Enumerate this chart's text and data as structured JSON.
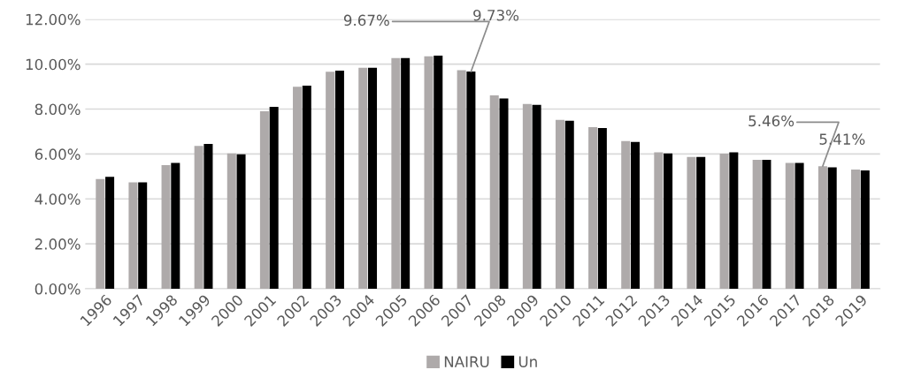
{
  "chart_data": {
    "type": "bar",
    "categories": [
      "1996",
      "1997",
      "1998",
      "1999",
      "2000",
      "2001",
      "2002",
      "2003",
      "2004",
      "2005",
      "2006",
      "2007",
      "2008",
      "2009",
      "2010",
      "2011",
      "2012",
      "2013",
      "2014",
      "2015",
      "2016",
      "2017",
      "2018",
      "2019"
    ],
    "series": [
      {
        "name": "NAIRU",
        "color": "#aeaaaa",
        "values": [
          4.89,
          4.74,
          5.5,
          6.36,
          6.03,
          7.9,
          8.99,
          9.66,
          9.84,
          10.27,
          10.35,
          9.73,
          8.61,
          8.23,
          7.52,
          7.2,
          6.58,
          6.07,
          5.87,
          6.02,
          5.74,
          5.6,
          5.46,
          5.31
        ]
      },
      {
        "name": "Un",
        "color": "#000000",
        "values": [
          4.98,
          4.74,
          5.6,
          6.45,
          5.99,
          8.1,
          9.04,
          9.71,
          9.84,
          10.27,
          10.38,
          9.67,
          8.47,
          8.19,
          7.48,
          7.16,
          6.54,
          6.03,
          5.87,
          6.07,
          5.74,
          5.6,
          5.41,
          5.27
        ]
      }
    ],
    "ylim": [
      0,
      12
    ],
    "yticks": [
      {
        "value": 0,
        "label": "0.00%"
      },
      {
        "value": 2,
        "label": "2.00%"
      },
      {
        "value": 4,
        "label": "4.00%"
      },
      {
        "value": 6,
        "label": "6.00%"
      },
      {
        "value": 8,
        "label": "8.00%"
      },
      {
        "value": 10,
        "label": "10.00%"
      },
      {
        "value": 12,
        "label": "12.00%"
      }
    ],
    "annotations": [
      {
        "text": "9.67%",
        "x": "2007",
        "y": 9.67
      },
      {
        "text": "9.73%",
        "x": "2007",
        "y": 9.73
      },
      {
        "text": "5.46%",
        "x": "2018",
        "y": 5.46
      },
      {
        "text": "5.41%",
        "x": "2018",
        "y": 5.41
      }
    ],
    "grid": "y",
    "legend": "bottom"
  }
}
